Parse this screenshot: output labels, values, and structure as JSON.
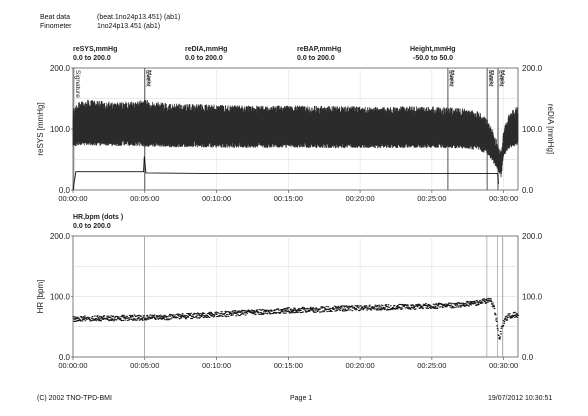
{
  "header": {
    "beat_data_label": "Beat data",
    "beat_data_value": "(beat.1no24p13.451) (ab1)",
    "finometer_label": "Finometer",
    "finometer_value": "1no24p13.451 (ab1)"
  },
  "footer": {
    "copyright": "(C) 2002 TNO-TPD-BMI",
    "page": "Page 1",
    "timestamp": "19/07/2012 10:30:51"
  },
  "chart_data": [
    {
      "type": "line",
      "channels": [
        {
          "name": "reSYS,mmHg",
          "range": "0.0 to 200.0"
        },
        {
          "name": "reDIA,mmHg",
          "range": "0.0 to 200.0"
        },
        {
          "name": "reBAP,mmHg",
          "range": "0.0 to 200.0"
        },
        {
          "name": "Height,mmHg",
          "range": "-50.0 to 50.0"
        }
      ],
      "ylabel": "reSYS [mmHg]",
      "ylabel_right": "reDIA [mmHg]",
      "ylim": [
        0,
        200
      ],
      "yticks": [
        "0.0",
        "100.0",
        "200.0"
      ],
      "yticks_right": [
        "0.0",
        "100.0",
        "200.0"
      ],
      "xlim_seconds": [
        0,
        1860
      ],
      "xticks": [
        "00:00:00",
        "00:05:00",
        "00:10:00",
        "00:15:00",
        "00:20:00",
        "00:25:00",
        "00:30:00"
      ],
      "markers": [
        {
          "label": "Signature",
          "t": 4
        },
        {
          "label": "Event",
          "t": 298
        },
        {
          "label": "Mark",
          "t": 301
        },
        {
          "label": "Event",
          "t": 1565
        },
        {
          "label": "Mark",
          "t": 1568
        },
        {
          "label": "Event",
          "t": 1730
        },
        {
          "label": "Mark",
          "t": 1733
        },
        {
          "label": "Event",
          "t": 1775
        },
        {
          "label": "Mark",
          "t": 1778
        }
      ],
      "series": [
        {
          "name": "reSYS,mmHg",
          "kind": "band",
          "x": [
            0,
            20,
            60,
            120,
            180,
            240,
            300,
            400,
            500,
            600,
            700,
            800,
            900,
            1000,
            1100,
            1200,
            1300,
            1400,
            1500,
            1600,
            1650,
            1700,
            1740,
            1770,
            1790,
            1800,
            1820,
            1840,
            1860
          ],
          "values": [
            125,
            135,
            140,
            138,
            136,
            137,
            140,
            135,
            133,
            132,
            131,
            130,
            131,
            130,
            130,
            129,
            128,
            130,
            129,
            127,
            125,
            120,
            105,
            75,
            55,
            95,
            115,
            125,
            130
          ]
        },
        {
          "name": "reDIA,mmHg",
          "kind": "band",
          "x": [
            0,
            20,
            60,
            120,
            180,
            240,
            300,
            400,
            500,
            600,
            700,
            800,
            900,
            1000,
            1100,
            1200,
            1300,
            1400,
            1500,
            1600,
            1650,
            1700,
            1740,
            1770,
            1790,
            1800,
            1820,
            1840,
            1860
          ],
          "values": [
            75,
            78,
            78,
            77,
            77,
            77,
            76,
            75,
            75,
            74,
            74,
            74,
            74,
            74,
            73,
            74,
            73,
            74,
            74,
            73,
            72,
            70,
            60,
            40,
            25,
            60,
            72,
            75,
            77
          ]
        },
        {
          "name": "Height,mmHg",
          "kind": "line",
          "x": [
            0,
            12,
            295,
            298,
            305,
            600,
            900,
            1200,
            1500,
            1775,
            1778
          ],
          "values": [
            0,
            30,
            30,
            55,
            28,
            27,
            27,
            27,
            27,
            27,
            10
          ]
        }
      ]
    },
    {
      "type": "scatter",
      "channels": [
        {
          "name": "HR,bpm",
          "style": "(dots )",
          "range": "0.0 to 200.0"
        }
      ],
      "ylabel": "HR [bpm]",
      "ylim": [
        0,
        200
      ],
      "yticks": [
        "0.0",
        "100.0",
        "200.0"
      ],
      "yticks_right": [
        "0.0",
        "100.0",
        "200.0"
      ],
      "xlim_seconds": [
        0,
        1860
      ],
      "xticks": [
        "00:00:00",
        "00:05:00",
        "00:10:00",
        "00:15:00",
        "00:20:00",
        "00:25:00",
        "00:30:00"
      ],
      "series": [
        {
          "name": "HR,bpm",
          "x": [
            0,
            60,
            120,
            180,
            240,
            300,
            400,
            500,
            600,
            700,
            800,
            900,
            1000,
            1100,
            1200,
            1300,
            1400,
            1500,
            1600,
            1650,
            1700,
            1740,
            1760,
            1780,
            1800,
            1820,
            1840,
            1860
          ],
          "values": [
            63,
            64,
            64,
            64,
            65,
            65,
            66,
            68,
            70,
            73,
            75,
            77,
            78,
            80,
            81,
            82,
            83,
            84,
            86,
            88,
            90,
            95,
            80,
            30,
            60,
            68,
            70,
            70
          ]
        }
      ]
    }
  ]
}
